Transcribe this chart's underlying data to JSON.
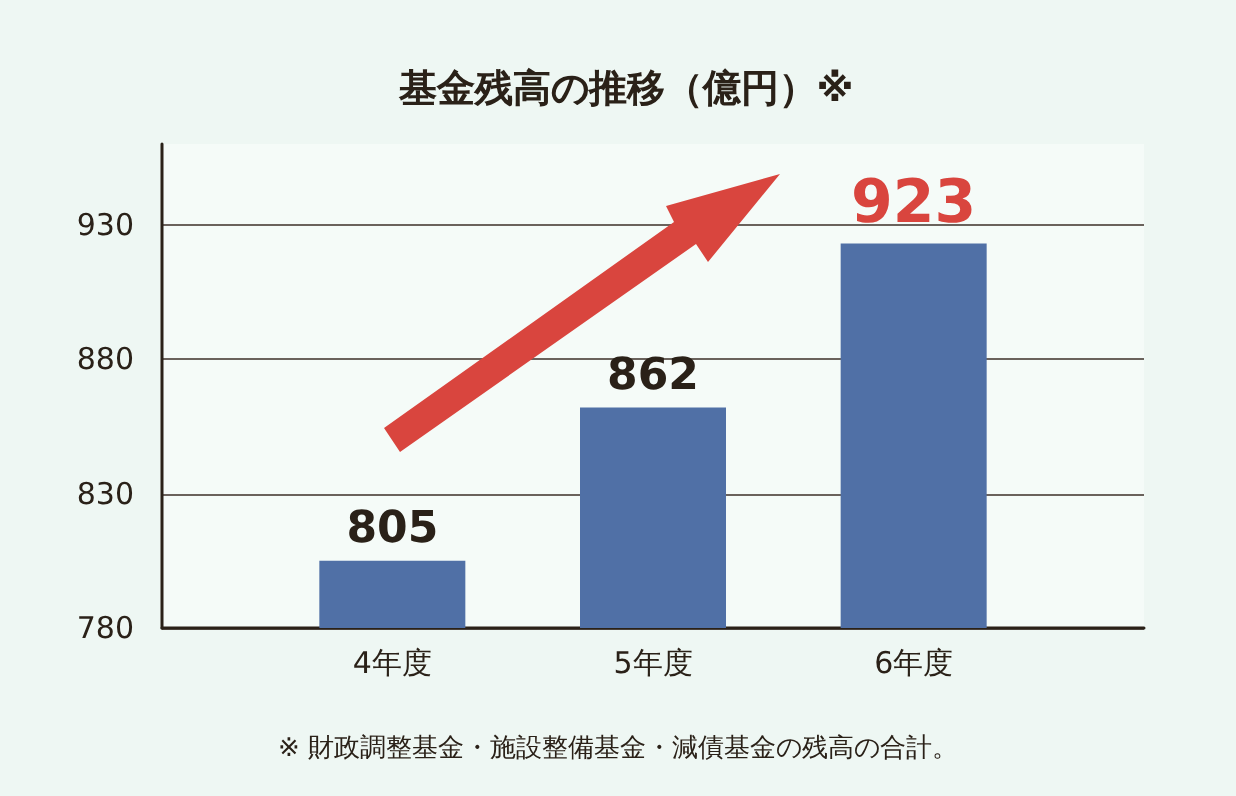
{
  "chart_data": {
    "type": "bar",
    "title": "基金残高の推移（億円）※",
    "categories": [
      "4年度",
      "5年度",
      "6年度"
    ],
    "values": [
      805,
      862,
      923
    ],
    "color": "#5070a6",
    "ylim": [
      780,
      960
    ],
    "yticks": [
      780,
      830,
      880,
      930
    ],
    "grid": "y",
    "data_labels": true,
    "annotations": [
      "※ 財政調整基金・施設整備基金・減債基金の残高の合計。"
    ]
  }
}
